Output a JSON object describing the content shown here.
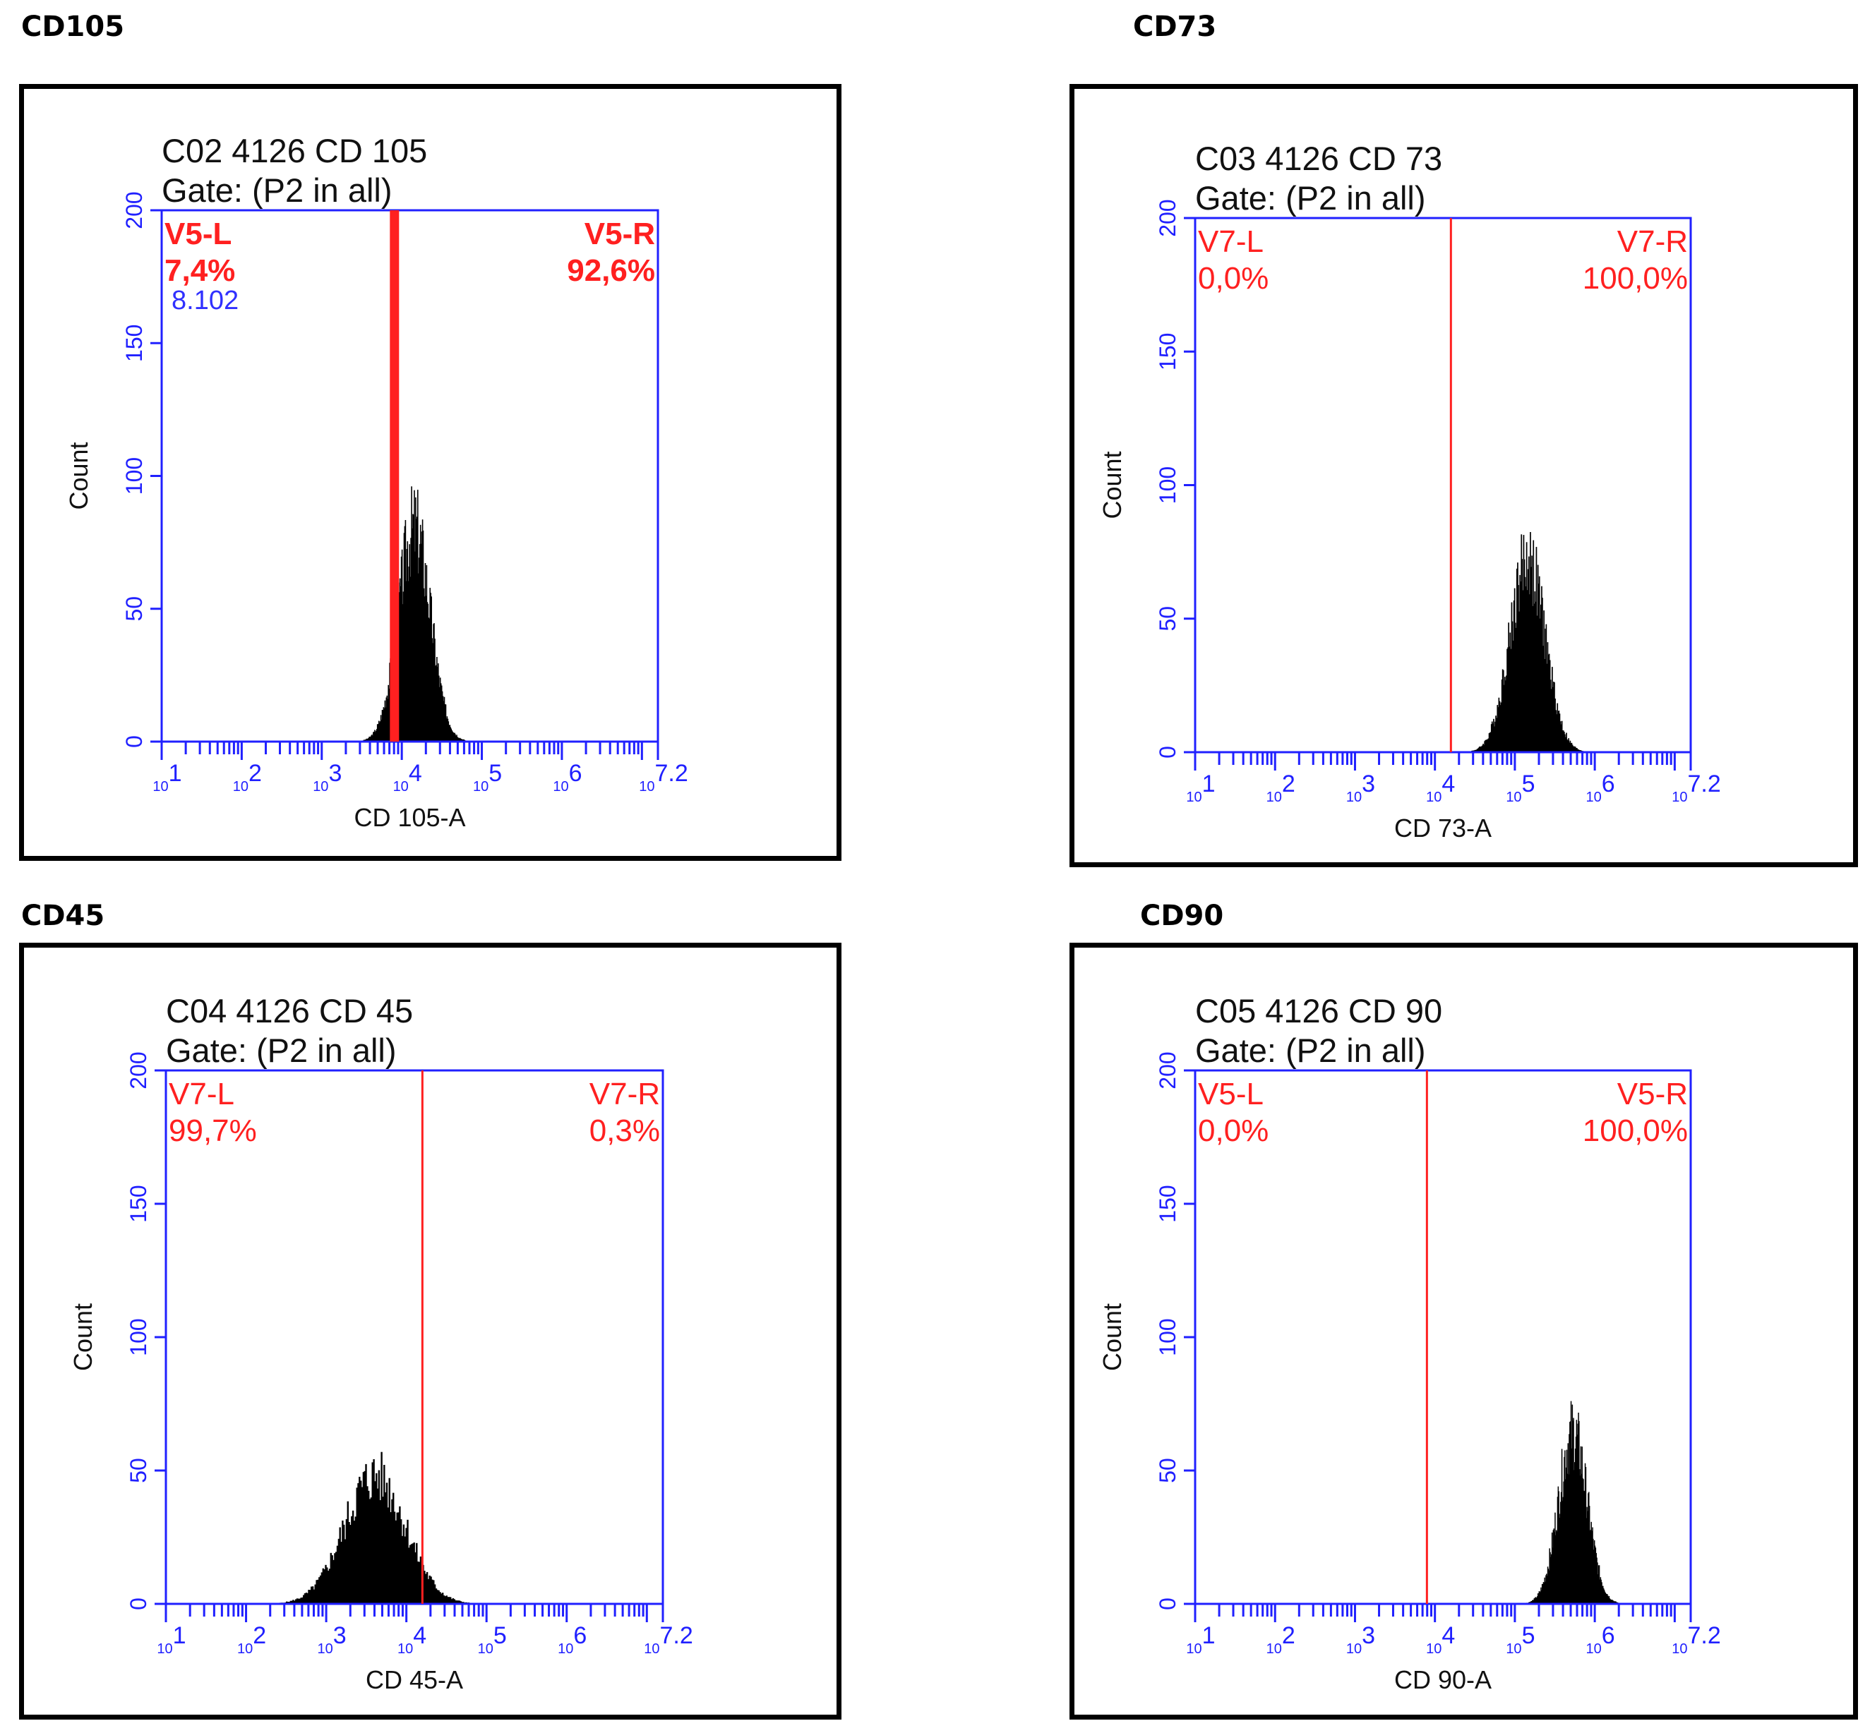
{
  "chart_data": [
    {
      "type": "histogram",
      "heading": "CD105",
      "title": "C02 4126 CD 105",
      "subtitle": "Gate: (P2 in all)",
      "xlabel": "CD 105-A",
      "ylabel": "Count",
      "x_scale": "log",
      "xlim": [
        10,
        15848932
      ],
      "ylim": [
        0,
        200
      ],
      "y_ticks": [
        "0",
        "50",
        "100",
        "150",
        "200"
      ],
      "x_ticks": [
        "10^1",
        "10^2",
        "10^3",
        "10^4",
        "10^5",
        "10^6",
        "10^7.2"
      ],
      "x_tick_base": "10",
      "x_tick_exponents": [
        "1",
        "2",
        "3",
        "4",
        "5",
        "6",
        "7.2"
      ],
      "gate_x": 8102,
      "gate_bold": true,
      "gates": [
        {
          "name": "V5-L",
          "percent": "7,4%",
          "side": "left"
        },
        {
          "name": "V5-R",
          "percent": "92,6%",
          "side": "right"
        }
      ],
      "gate_value": "8.102",
      "distribution": {
        "peak_log10": 4.15,
        "peak_count": 81,
        "spread_log10": 0.2
      }
    },
    {
      "type": "histogram",
      "heading": "CD73",
      "title": "C03 4126 CD 73",
      "subtitle": "Gate: (P2 in all)",
      "xlabel": "CD 73-A",
      "ylabel": "Count",
      "x_scale": "log",
      "xlim": [
        10,
        15848932
      ],
      "ylim": [
        0,
        200
      ],
      "y_ticks": [
        "0",
        "50",
        "100",
        "150",
        "200"
      ],
      "x_ticks": [
        "10^1",
        "10^2",
        "10^3",
        "10^4",
        "10^5",
        "10^6",
        "10^7.2"
      ],
      "x_tick_base": "10",
      "x_tick_exponents": [
        "1",
        "2",
        "3",
        "4",
        "5",
        "6",
        "7.2"
      ],
      "gate_x": 15849,
      "gate_bold": false,
      "gates": [
        {
          "name": "V7-L",
          "percent": "0,0%",
          "side": "left"
        },
        {
          "name": "V7-R",
          "percent": "100,0%",
          "side": "right"
        }
      ],
      "distribution": {
        "peak_log10": 5.15,
        "peak_count": 72,
        "spread_log10": 0.22
      }
    },
    {
      "type": "histogram",
      "heading": "CD45",
      "title": "C04 4126 CD 45",
      "subtitle": "Gate: (P2 in all)",
      "xlabel": "CD 45-A",
      "ylabel": "Count",
      "x_scale": "log",
      "xlim": [
        10,
        15848932
      ],
      "ylim": [
        0,
        200
      ],
      "y_ticks": [
        "0",
        "50",
        "100",
        "150",
        "200"
      ],
      "x_ticks": [
        "10^1",
        "10^2",
        "10^3",
        "10^4",
        "10^5",
        "10^6",
        "10^7.2"
      ],
      "x_tick_base": "10",
      "x_tick_exponents": [
        "1",
        "2",
        "3",
        "4",
        "5",
        "6",
        "7.2"
      ],
      "gate_x": 15849,
      "gate_bold": false,
      "gates": [
        {
          "name": "V7-L",
          "percent": "99,7%",
          "side": "left"
        },
        {
          "name": "V7-R",
          "percent": "0,3%",
          "side": "right"
        }
      ],
      "distribution": {
        "peak_log10": 3.6,
        "peak_count": 48,
        "spread_log10": 0.38
      }
    },
    {
      "type": "histogram",
      "heading": "CD90",
      "title": "C05 4126 CD 90",
      "subtitle": "Gate: (P2 in all)",
      "xlabel": "CD 90-A",
      "ylabel": "Count",
      "x_scale": "log",
      "xlim": [
        10,
        15848932
      ],
      "ylim": [
        0,
        200
      ],
      "y_ticks": [
        "0",
        "50",
        "100",
        "150",
        "200"
      ],
      "x_ticks": [
        "10^1",
        "10^2",
        "10^3",
        "10^4",
        "10^5",
        "10^6",
        "10^7.2"
      ],
      "x_tick_base": "10",
      "x_tick_exponents": [
        "1",
        "2",
        "3",
        "4",
        "5",
        "6",
        "7.2"
      ],
      "gate_x": 7943,
      "gate_bold": false,
      "gates": [
        {
          "name": "V5-L",
          "percent": "0,0%",
          "side": "left"
        },
        {
          "name": "V5-R",
          "percent": "100,0%",
          "side": "right"
        }
      ],
      "distribution": {
        "peak_log10": 5.72,
        "peak_count": 64,
        "spread_log10": 0.18
      }
    }
  ],
  "colors": {
    "axis": "#2020ff",
    "gate": "#ff2020",
    "fill": "#000000",
    "frame": "#000000"
  }
}
